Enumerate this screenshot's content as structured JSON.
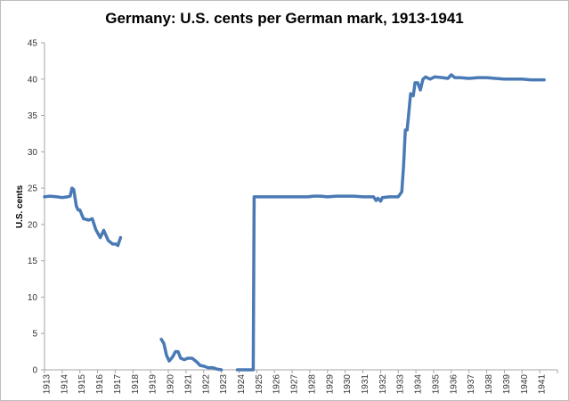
{
  "chart_data": {
    "type": "line",
    "title": "Germany: U.S. cents per German mark, 1913-1941",
    "xlabel": "",
    "ylabel": "U.S. cents",
    "xlim": [
      1913,
      1942
    ],
    "ylim": [
      0,
      45
    ],
    "yticks": [
      0,
      5,
      10,
      15,
      20,
      25,
      30,
      35,
      40,
      45
    ],
    "xtick_labels": [
      "1913",
      "1914",
      "1915",
      "1916",
      "1917",
      "1918",
      "1919",
      "1920",
      "1921",
      "1922",
      "1923",
      "1924",
      "1925",
      "1926",
      "1927",
      "1928",
      "1929",
      "1930",
      "1931",
      "1932",
      "1933",
      "1934",
      "1935",
      "1936",
      "1937",
      "1938",
      "1939",
      "1940",
      "1941"
    ],
    "grid": false,
    "legend": "none",
    "line_color": "#4a7ab5",
    "segments": [
      [
        [
          1913.0,
          23.8
        ],
        [
          1913.3,
          23.9
        ],
        [
          1913.7,
          23.8
        ],
        [
          1914.0,
          23.7
        ],
        [
          1914.3,
          23.8
        ],
        [
          1914.45,
          23.9
        ],
        [
          1914.55,
          25.0
        ],
        [
          1914.65,
          24.8
        ],
        [
          1914.8,
          22.5
        ],
        [
          1914.9,
          22.0
        ],
        [
          1915.0,
          22.0
        ],
        [
          1915.2,
          20.8
        ],
        [
          1915.35,
          20.7
        ],
        [
          1915.5,
          20.6
        ],
        [
          1915.7,
          20.8
        ],
        [
          1915.9,
          19.3
        ],
        [
          1916.15,
          18.2
        ],
        [
          1916.35,
          19.2
        ],
        [
          1916.6,
          17.8
        ],
        [
          1916.85,
          17.3
        ],
        [
          1917.05,
          17.3
        ],
        [
          1917.15,
          17.1
        ],
        [
          1917.3,
          18.2
        ]
      ],
      [
        [
          1919.6,
          4.2
        ],
        [
          1919.75,
          3.6
        ],
        [
          1919.9,
          2.0
        ],
        [
          1920.05,
          1.2
        ],
        [
          1920.25,
          1.8
        ],
        [
          1920.4,
          2.5
        ],
        [
          1920.55,
          2.5
        ],
        [
          1920.7,
          1.6
        ],
        [
          1920.9,
          1.4
        ],
        [
          1921.1,
          1.6
        ],
        [
          1921.35,
          1.6
        ],
        [
          1921.6,
          1.1
        ],
        [
          1921.8,
          0.6
        ],
        [
          1922.0,
          0.5
        ],
        [
          1922.25,
          0.3
        ],
        [
          1922.5,
          0.3
        ],
        [
          1922.75,
          0.1
        ],
        [
          1923.0,
          0.0
        ]
      ],
      [
        [
          1923.9,
          0.0
        ],
        [
          1924.8,
          0.0
        ],
        [
          1924.85,
          23.8
        ],
        [
          1926.0,
          23.8
        ],
        [
          1927.0,
          23.8
        ],
        [
          1927.9,
          23.8
        ],
        [
          1928.2,
          23.9
        ],
        [
          1928.6,
          23.9
        ],
        [
          1929.0,
          23.8
        ],
        [
          1929.5,
          23.9
        ],
        [
          1930.0,
          23.9
        ],
        [
          1930.5,
          23.9
        ],
        [
          1931.0,
          23.8
        ],
        [
          1931.6,
          23.8
        ],
        [
          1931.75,
          23.3
        ],
        [
          1931.85,
          23.6
        ],
        [
          1932.0,
          23.2
        ],
        [
          1932.1,
          23.7
        ],
        [
          1932.5,
          23.8
        ],
        [
          1933.0,
          23.8
        ],
        [
          1933.2,
          24.5
        ],
        [
          1933.3,
          28.0
        ],
        [
          1933.4,
          33.0
        ],
        [
          1933.5,
          33.0
        ],
        [
          1933.6,
          35.5
        ],
        [
          1933.7,
          38.0
        ],
        [
          1933.85,
          37.7
        ],
        [
          1933.95,
          39.5
        ],
        [
          1934.1,
          39.5
        ],
        [
          1934.25,
          38.5
        ],
        [
          1934.4,
          40.0
        ],
        [
          1934.55,
          40.3
        ],
        [
          1934.8,
          40.0
        ],
        [
          1935.05,
          40.3
        ],
        [
          1935.5,
          40.2
        ],
        [
          1935.8,
          40.1
        ],
        [
          1936.0,
          40.6
        ],
        [
          1936.2,
          40.2
        ],
        [
          1936.5,
          40.2
        ],
        [
          1937.0,
          40.1
        ],
        [
          1937.5,
          40.2
        ],
        [
          1938.0,
          40.2
        ],
        [
          1938.5,
          40.1
        ],
        [
          1939.0,
          40.0
        ],
        [
          1939.6,
          40.0
        ],
        [
          1940.0,
          40.0
        ],
        [
          1940.5,
          39.9
        ],
        [
          1941.0,
          39.9
        ],
        [
          1941.25,
          39.9
        ]
      ]
    ]
  }
}
